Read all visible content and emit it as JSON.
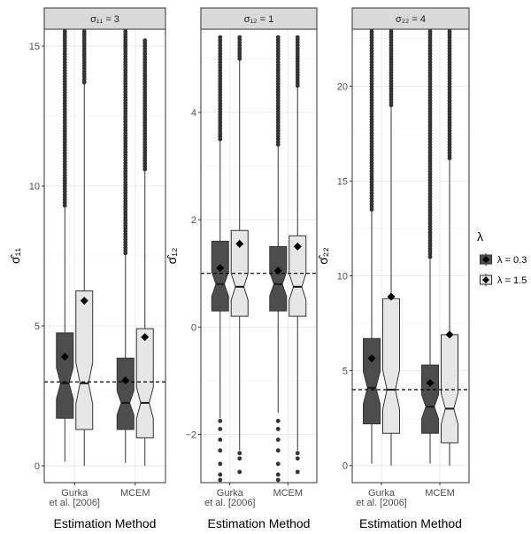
{
  "chart_data": {
    "type": "boxplot",
    "x_categories": [
      "Gurka\net al. [2006]",
      "MCEM"
    ],
    "xlabel": "Estimation Method",
    "legend": {
      "title": "λ",
      "entries": [
        "λ = 0.3",
        "λ = 1.5"
      ],
      "colors": [
        "#4d4d4d",
        "#e6e6e6"
      ],
      "placement": "right"
    },
    "panels": [
      {
        "strip": "σ₁₁ = 3",
        "ylabel": "σ̂₁₁",
        "ylim": [
          -0.6,
          15.6
        ],
        "yticks": [
          0,
          5,
          10,
          15
        ],
        "reference_line": 3,
        "boxes": [
          {
            "method": "Gurka\net al. [2006]",
            "lambda": "λ = 0.3",
            "whisker_low": 0.15,
            "q1": 1.7,
            "median": 2.95,
            "q3": 4.75,
            "whisker_high": 9.3,
            "mean": 3.9,
            "outliers_from": 9.3,
            "outliers_to": 15.6
          },
          {
            "method": "Gurka\net al. [2006]",
            "lambda": "λ = 1.5",
            "whisker_low": 0.0,
            "q1": 1.3,
            "median": 2.95,
            "q3": 6.25,
            "whisker_high": 13.7,
            "mean": 5.9,
            "outliers_from": 13.7,
            "outliers_to": 15.6
          },
          {
            "method": "MCEM",
            "lambda": "λ = 0.3",
            "whisker_low": 0.1,
            "q1": 1.3,
            "median": 2.25,
            "q3": 3.85,
            "whisker_high": 7.6,
            "mean": 3.05,
            "outliers_from": 7.6,
            "outliers_to": 15.6
          },
          {
            "method": "MCEM",
            "lambda": "λ = 1.5",
            "whisker_low": 0.0,
            "q1": 1.0,
            "median": 2.25,
            "q3": 4.9,
            "whisker_high": 10.6,
            "mean": 4.6,
            "outliers_from": 10.6,
            "outliers_to": 15.2
          }
        ]
      },
      {
        "strip": "σ₁₂ = 1",
        "ylabel": "σ̂₁₂",
        "ylim": [
          -2.9,
          5.55
        ],
        "yticks": [
          -2,
          0,
          2,
          4
        ],
        "reference_line": 1,
        "boxes": [
          {
            "method": "Gurka\net al. [2006]",
            "lambda": "λ = 0.3",
            "whisker_low": -1.7,
            "q1": 0.3,
            "median": 0.8,
            "q3": 1.6,
            "whisker_high": 3.5,
            "mean": 1.1,
            "outliers_from": 3.5,
            "outliers_to": 5.4
          },
          {
            "method": "Gurka\net al. [2006]",
            "lambda": "λ = 1.5",
            "whisker_low": -2.3,
            "q1": 0.2,
            "median": 0.75,
            "q3": 1.8,
            "whisker_high": 5.0,
            "mean": 1.55,
            "outliers_from": 5.0,
            "outliers_to": 5.4
          },
          {
            "method": "MCEM",
            "lambda": "λ = 0.3",
            "whisker_low": -1.6,
            "q1": 0.3,
            "median": 0.8,
            "q3": 1.5,
            "whisker_high": 3.4,
            "mean": 1.05,
            "outliers_from": 3.4,
            "outliers_to": 5.4
          },
          {
            "method": "MCEM",
            "lambda": "λ = 1.5",
            "whisker_low": -2.3,
            "q1": 0.2,
            "median": 0.75,
            "q3": 1.7,
            "whisker_high": 4.5,
            "mean": 1.5,
            "outliers_from": 4.5,
            "outliers_to": 5.4
          }
        ]
      },
      {
        "strip": "σ₂₂ = 4",
        "ylabel": "σ̂₂₂",
        "ylim": [
          -0.9,
          23.0
        ],
        "yticks": [
          0,
          5,
          10,
          15,
          20
        ],
        "reference_line": 4,
        "boxes": [
          {
            "method": "Gurka\net al. [2006]",
            "lambda": "λ = 0.3",
            "whisker_low": 0.1,
            "q1": 2.2,
            "median": 4.1,
            "q3": 6.7,
            "whisker_high": 13.5,
            "mean": 5.65,
            "outliers_from": 13.5,
            "outliers_to": 23.0
          },
          {
            "method": "Gurka\net al. [2006]",
            "lambda": "λ = 1.5",
            "whisker_low": 0.0,
            "q1": 1.7,
            "median": 4.0,
            "q3": 8.8,
            "whisker_high": 19.0,
            "mean": 8.9,
            "outliers_from": 19.0,
            "outliers_to": 23.0
          },
          {
            "method": "MCEM",
            "lambda": "λ = 0.3",
            "whisker_low": 0.1,
            "q1": 1.7,
            "median": 3.1,
            "q3": 5.3,
            "whisker_high": 11.0,
            "mean": 4.35,
            "outliers_from": 11.0,
            "outliers_to": 23.0
          },
          {
            "method": "MCEM",
            "lambda": "λ = 1.5",
            "whisker_low": 0.0,
            "q1": 1.2,
            "median": 3.0,
            "q3": 6.9,
            "whisker_high": 16.2,
            "mean": 6.9,
            "outliers_from": 16.2,
            "outliers_to": 23.0
          }
        ]
      }
    ]
  }
}
